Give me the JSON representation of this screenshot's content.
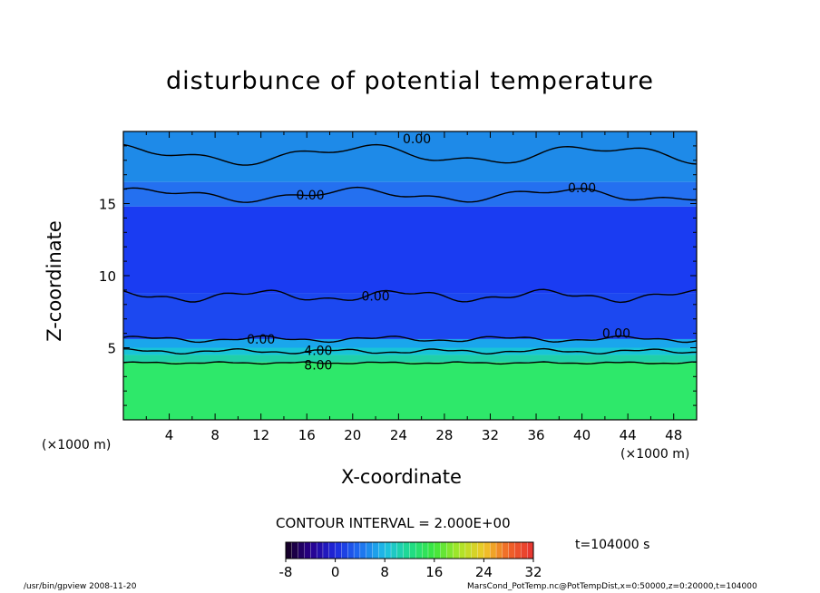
{
  "chart_data": {
    "type": "heatmap",
    "title": "disturbunce of potential temperature",
    "xlabel": "X-coordinate",
    "ylabel": "Z-coordinate",
    "x_unit_left": "(×1000 m)",
    "x_unit_right": "(×1000 m)",
    "xlim": [
      0,
      50
    ],
    "ylim": [
      0,
      20
    ],
    "x_ticks": [
      "4",
      "8",
      "12",
      "16",
      "20",
      "24",
      "28",
      "32",
      "36",
      "40",
      "44",
      "48"
    ],
    "x_tick_values": [
      4,
      8,
      12,
      16,
      20,
      24,
      28,
      32,
      36,
      40,
      44,
      48
    ],
    "y_ticks": [
      "5",
      "10",
      "15"
    ],
    "y_tick_values": [
      5,
      10,
      15
    ],
    "contour_interval": "CONTOUR INTERVAL = 2.000E+00",
    "time_label": "t=104000 s",
    "colorbar": {
      "min": -8,
      "max": 32,
      "labels": [
        "-8",
        "0",
        "8",
        "16",
        "24",
        "32"
      ],
      "label_values": [
        -8,
        0,
        8,
        16,
        24,
        32
      ]
    },
    "contour_labels": [
      {
        "text": "0.00",
        "x": 25.6,
        "z": 19.5
      },
      {
        "text": "0.00",
        "x": 16.3,
        "z": 15.6
      },
      {
        "text": "0.00",
        "x": 40.0,
        "z": 16.1
      },
      {
        "text": "0.00",
        "x": 22.0,
        "z": 8.6
      },
      {
        "text": "0.00",
        "x": 12.0,
        "z": 5.6
      },
      {
        "text": "0.00",
        "x": 43.0,
        "z": 6.0
      },
      {
        "text": "4.00",
        "x": 17.0,
        "z": 4.8
      },
      {
        "text": "8.00",
        "x": 17.0,
        "z": 3.8
      }
    ],
    "bands": [
      {
        "z_from": 0,
        "z_to": 4.0,
        "value": 12,
        "color": "#2ee86a"
      },
      {
        "z_from": 4.0,
        "z_to": 4.5,
        "value": 8,
        "color": "#20d0a8"
      },
      {
        "z_from": 4.5,
        "z_to": 5.0,
        "value": 6,
        "color": "#18c4d8"
      },
      {
        "z_from": 5.0,
        "z_to": 5.6,
        "value": 3,
        "color": "#1aa6ec"
      },
      {
        "z_from": 5.6,
        "z_to": 8.8,
        "value": -2,
        "color": "#1c48f0"
      },
      {
        "z_from": 8.8,
        "z_to": 14.8,
        "value": -3,
        "color": "#1a3cf2"
      },
      {
        "z_from": 14.8,
        "z_to": 16.5,
        "value": -1,
        "color": "#2470f0"
      },
      {
        "z_from": 16.5,
        "z_to": 20,
        "value": 1,
        "color": "#1e8ae8"
      }
    ],
    "footer_left": "/usr/bin/gpview  2008-11-20",
    "footer_right": "MarsCond_PotTemp.nc@PotTempDist,x=0:50000,z=0:20000,t=104000"
  }
}
